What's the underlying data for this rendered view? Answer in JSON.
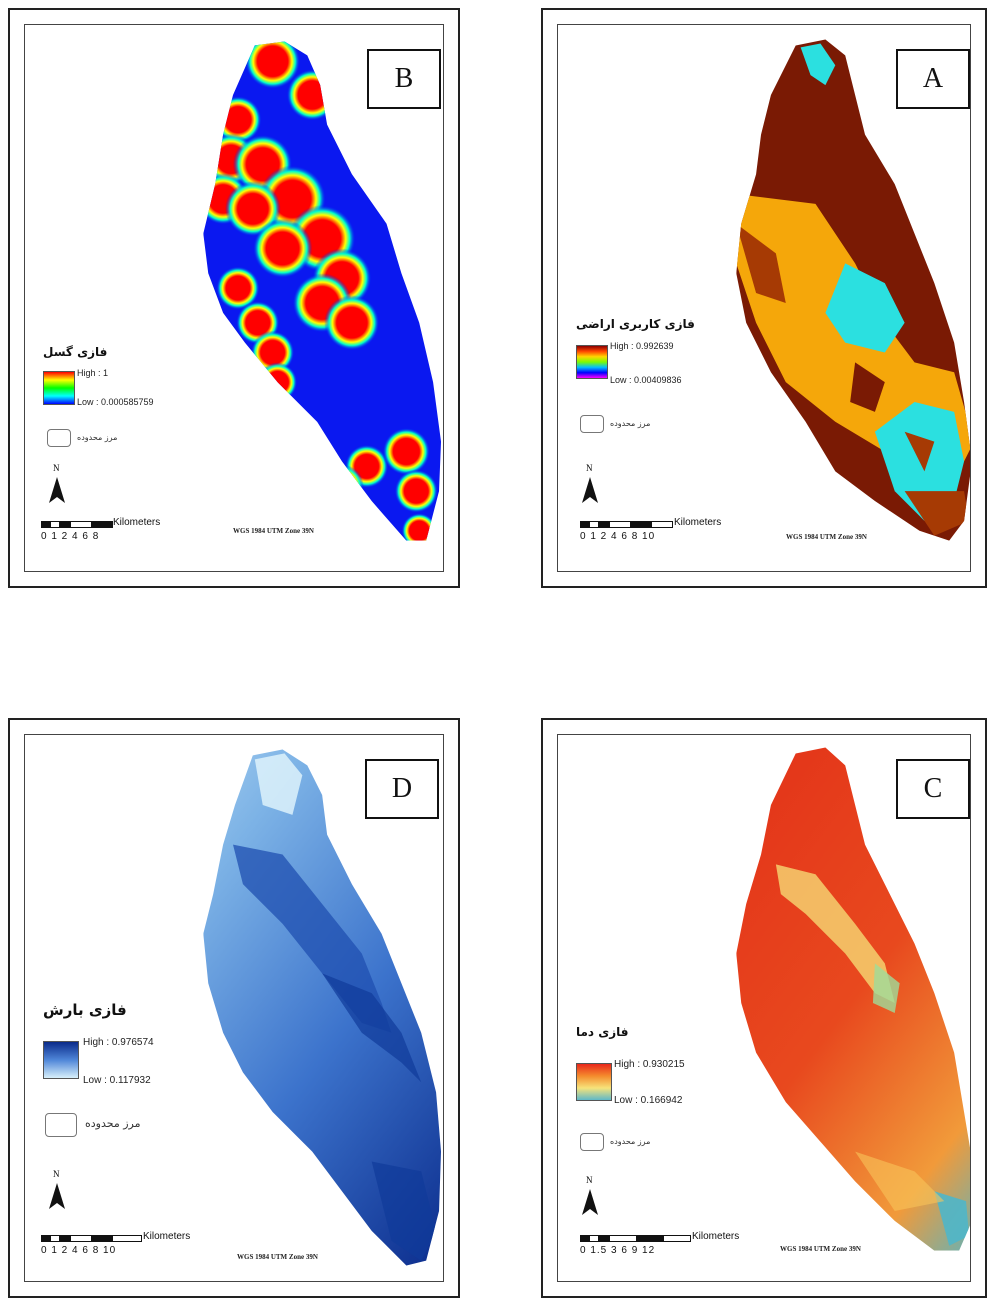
{
  "panels": {
    "B": {
      "letter": "B",
      "legend_title": "فازی گسل",
      "high": "High : 1",
      "low": "Low : 0.000585759",
      "boundary": "مرز محدوده",
      "north": "N",
      "scale_unit": "Kilometers",
      "scale_numbers": "0 1 2   4   6   8",
      "projection": "WGS 1984 UTM Zone 39N",
      "ramp_colors": [
        "#ff0000",
        "#ffff00",
        "#00ff00",
        "#00ffff",
        "#0000ff"
      ]
    },
    "A": {
      "letter": "A",
      "legend_title": "فازی کاربری اراضی",
      "high": "High : 0.992639",
      "low": "Low : 0.00409836",
      "boundary": "مرز محدوده",
      "north": "N",
      "scale_unit": "Kilometers",
      "scale_numbers": "0 1 2   4   6   8  10",
      "projection": "WGS 1984 UTM Zone 39N",
      "ramp_colors": [
        "#8b0000",
        "#ff4500",
        "#ffd700",
        "#7cfc00",
        "#00bfff",
        "#0000ff",
        "#ff00ff"
      ]
    },
    "D": {
      "letter": "D",
      "legend_title": "فازی بارش",
      "high": "High : 0.976574",
      "low": "Low : 0.117932",
      "boundary": "مرز محدوده",
      "north": "N",
      "scale_unit": "Kilometers",
      "scale_numbers": "0 1 2   4   6   8  10",
      "projection": "WGS 1984 UTM Zone 39N",
      "ramp_colors": [
        "#0a2a8a",
        "#4f86d8",
        "#d8f0fb"
      ]
    },
    "C": {
      "letter": "C",
      "legend_title": "فازی دما",
      "high": "High : 0.930215",
      "low": "Low : 0.166942",
      "boundary": "مرز محدوده",
      "north": "N",
      "scale_unit": "Kilometers",
      "scale_numbers": "0 1.5 3      6     9    12",
      "projection": "WGS 1984 UTM Zone 39N",
      "ramp_colors": [
        "#e8281c",
        "#f48b2d",
        "#f7e37a",
        "#5fb8c8"
      ]
    }
  }
}
